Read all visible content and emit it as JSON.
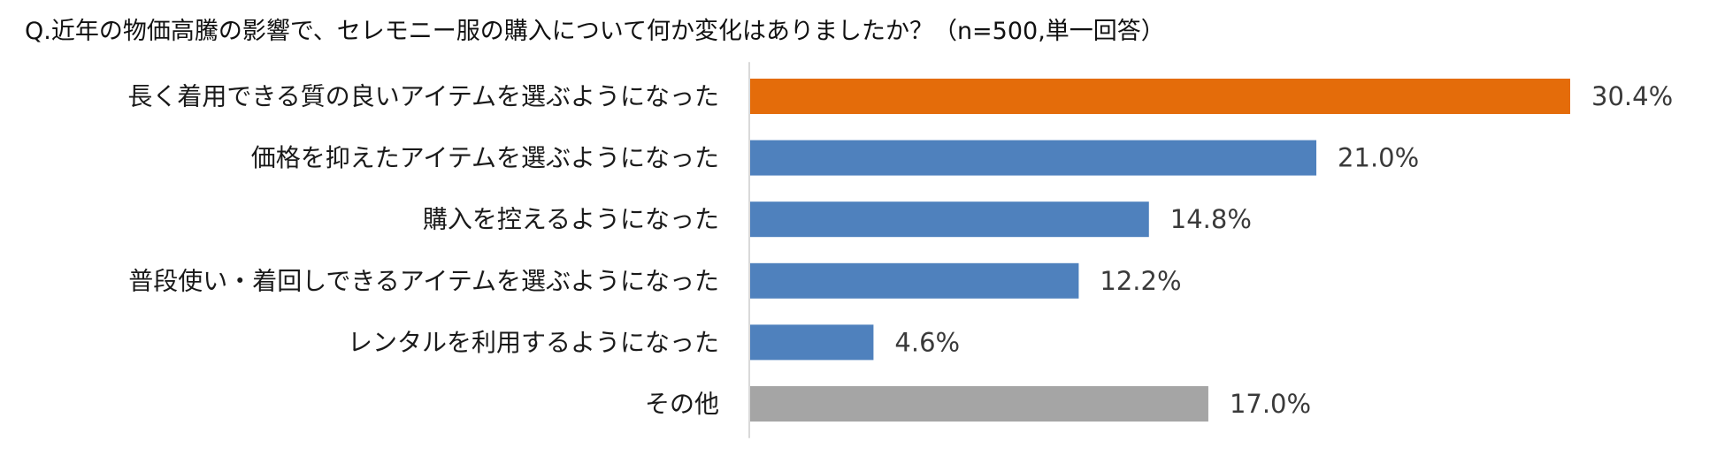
{
  "colors": {
    "highlight": "#E46C0A",
    "default": "#4F81BD",
    "other": "#A5A5A5",
    "axis": "#D9D9D9"
  },
  "chart_data": {
    "type": "bar",
    "orientation": "horizontal",
    "title": "Q.近年の物価高騰の影響で、セレモニー服の購入について何か変化はありましたか？（n=500,単一回答）",
    "categories": [
      "長く着用できる質の良いアイテムを選ぶようになった",
      "価格を抑えたアイテムを選ぶようになった",
      "購入を控えるようになった",
      "普段使い・着回しできるアイテムを選ぶようになった",
      "レンタルを利用するようになった",
      "その他"
    ],
    "values": [
      30.4,
      21.0,
      14.8,
      12.2,
      4.6,
      17.0
    ],
    "value_labels": [
      "30.4%",
      "21.0%",
      "14.8%",
      "12.2%",
      "4.6%",
      "17.0%"
    ],
    "bar_colors": [
      "#E46C0A",
      "#4F81BD",
      "#4F81BD",
      "#4F81BD",
      "#4F81BD",
      "#A5A5A5"
    ],
    "xlim": [
      0,
      30.4
    ],
    "grid": false,
    "legend": "none"
  }
}
